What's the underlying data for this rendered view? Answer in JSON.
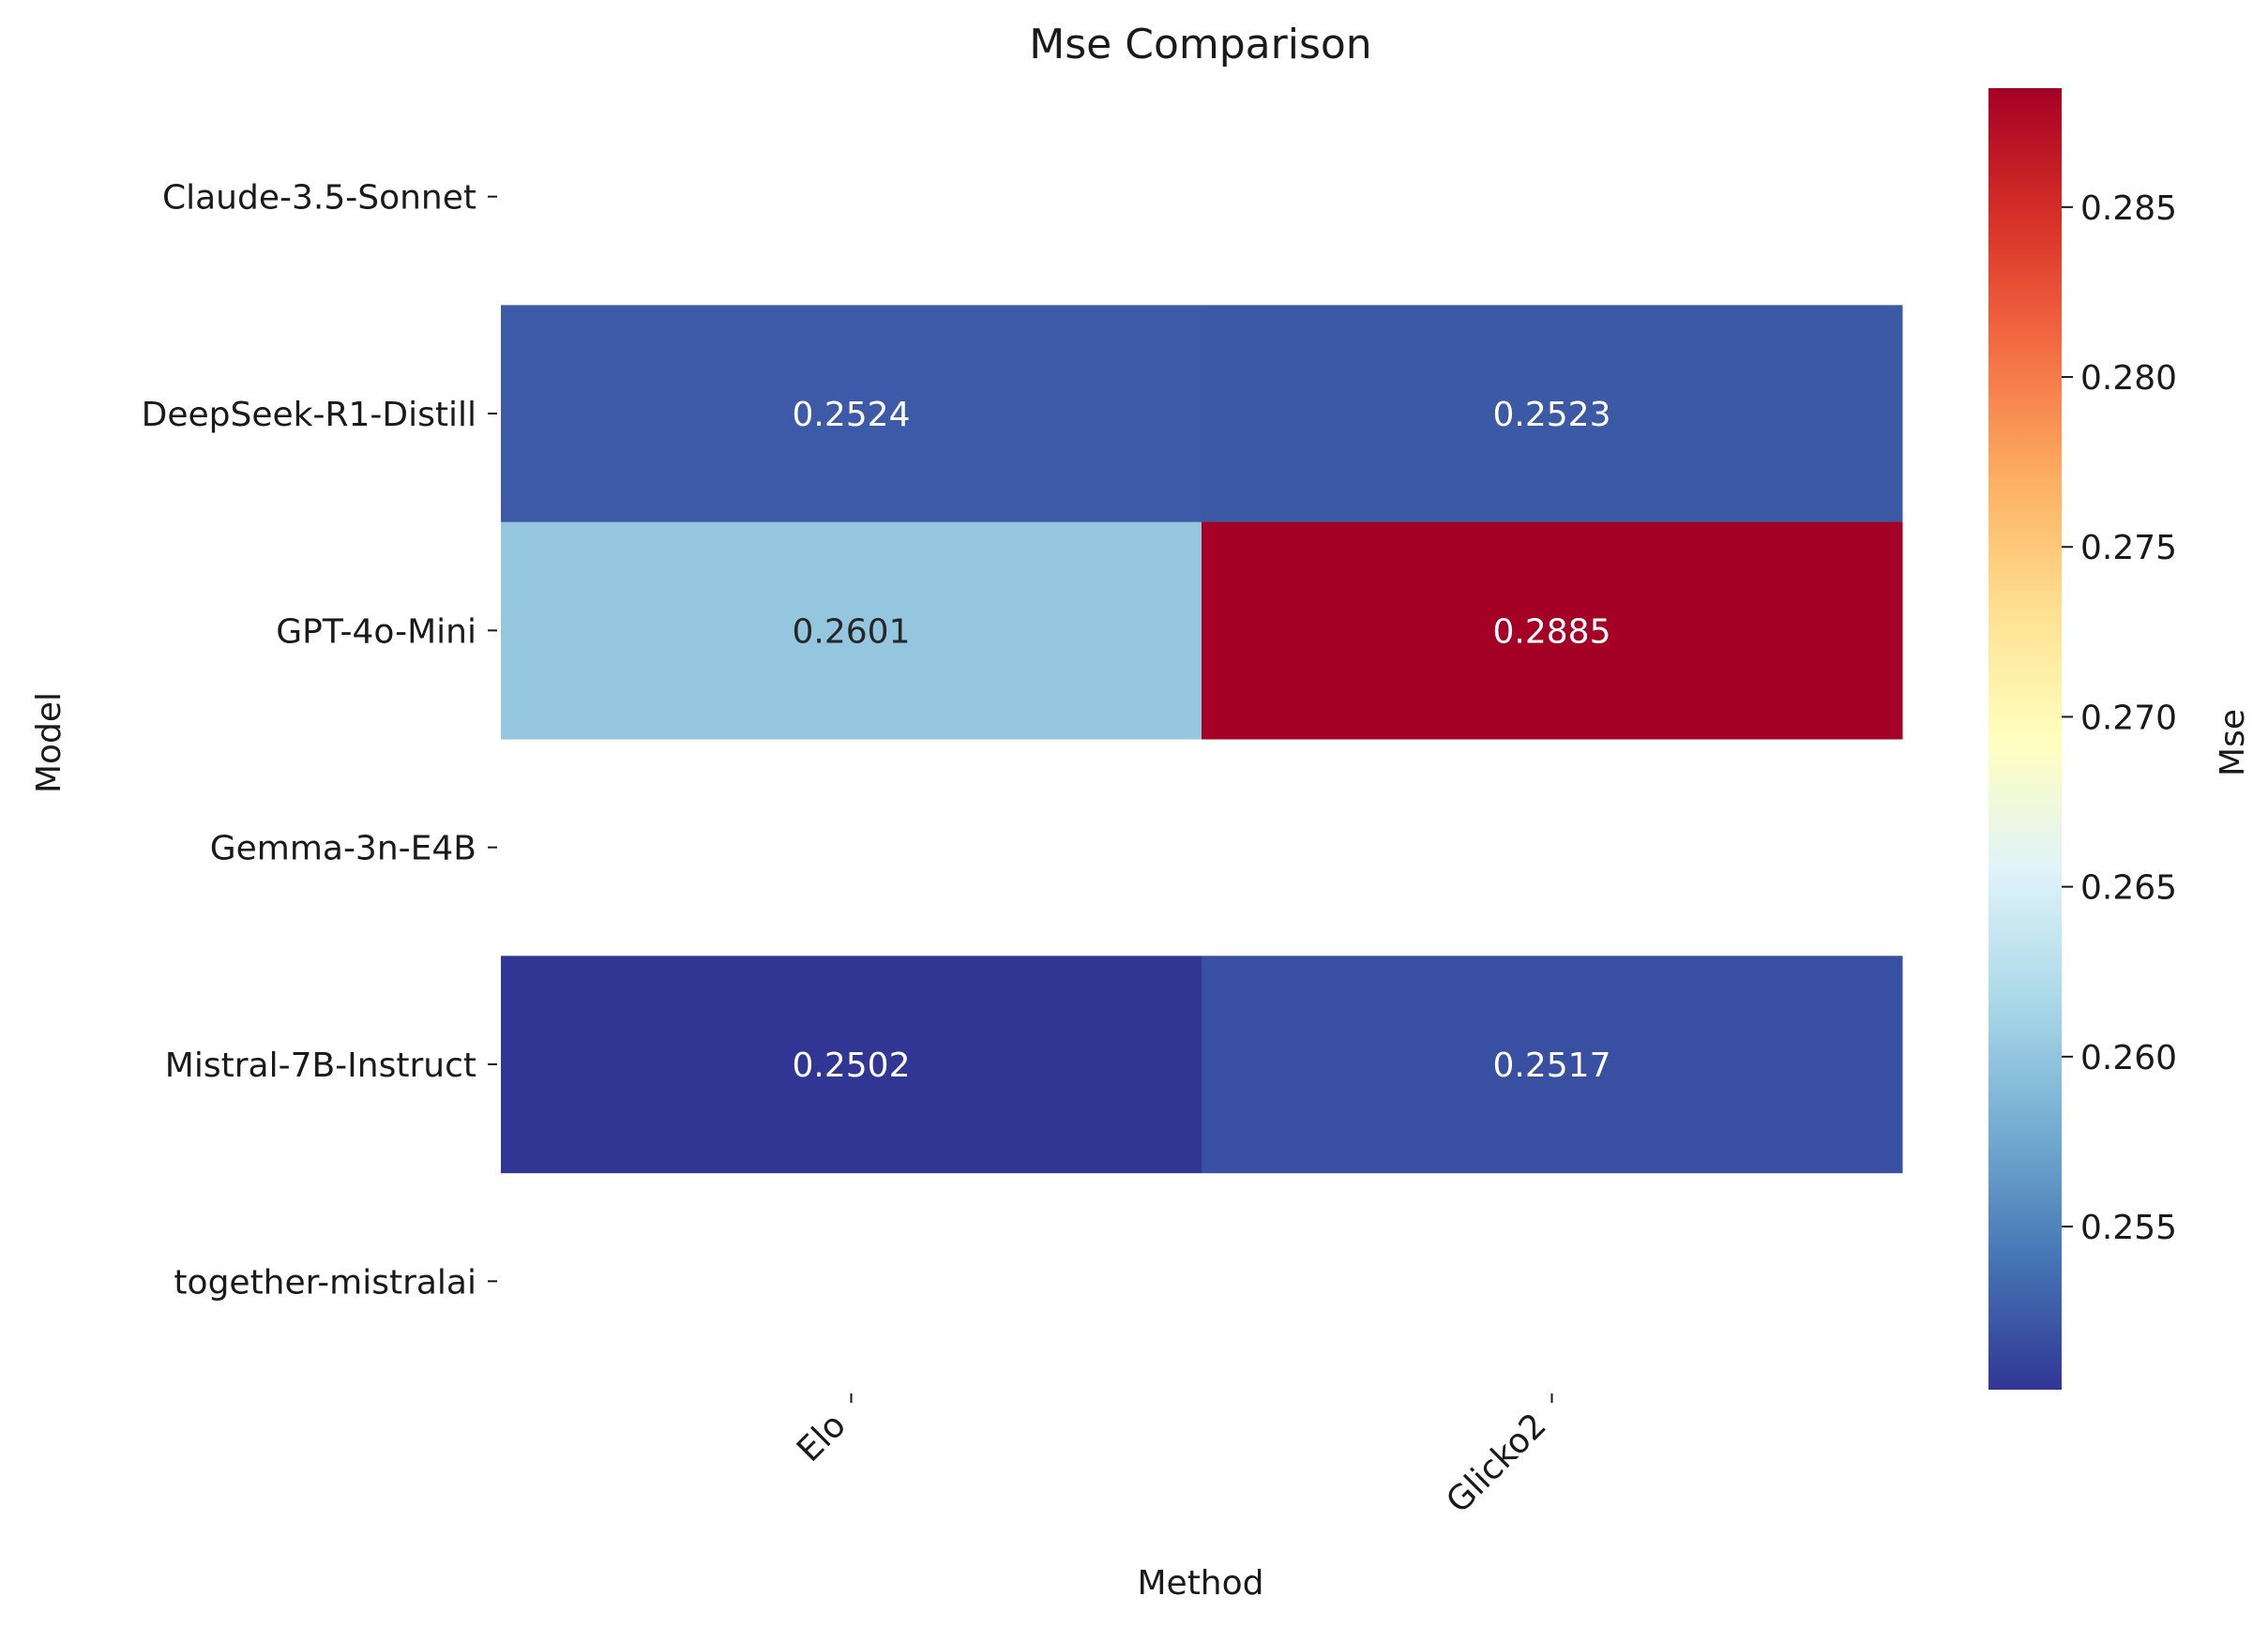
{
  "chart_data": {
    "type": "heatmap",
    "title": "Mse Comparison",
    "xlabel": "Method",
    "ylabel": "Model",
    "x_categories": [
      "Elo",
      "Glicko2"
    ],
    "y_categories": [
      "Claude-3.5-Sonnet",
      "DeepSeek-R1-Distill",
      "GPT-4o-Mini",
      "Gemma-3n-E4B",
      "Mistral-7B-Instruct",
      "together-mistralai"
    ],
    "values": [
      [
        null,
        null
      ],
      [
        0.2524,
        0.2523
      ],
      [
        0.2601,
        0.2885
      ],
      [
        null,
        null
      ],
      [
        0.2502,
        0.2517
      ],
      [
        null,
        null
      ]
    ],
    "value_labels": [
      [
        "",
        ""
      ],
      [
        "0.2524",
        "0.2523"
      ],
      [
        "0.2601",
        "0.2885"
      ],
      [
        "",
        ""
      ],
      [
        "0.2502",
        "0.2517"
      ],
      [
        "",
        ""
      ]
    ],
    "colormap": "RdYlBu_r",
    "colorbar": {
      "label": "Mse",
      "range": [
        0.2502,
        0.2885
      ],
      "ticks": [
        0.255,
        0.26,
        0.265,
        0.27,
        0.275,
        0.28,
        0.285
      ],
      "tick_labels": [
        "0.255",
        "0.260",
        "0.265",
        "0.270",
        "0.275",
        "0.280",
        "0.285"
      ]
    },
    "colors": {
      "low": "#313695",
      "high": "#a50026"
    }
  }
}
